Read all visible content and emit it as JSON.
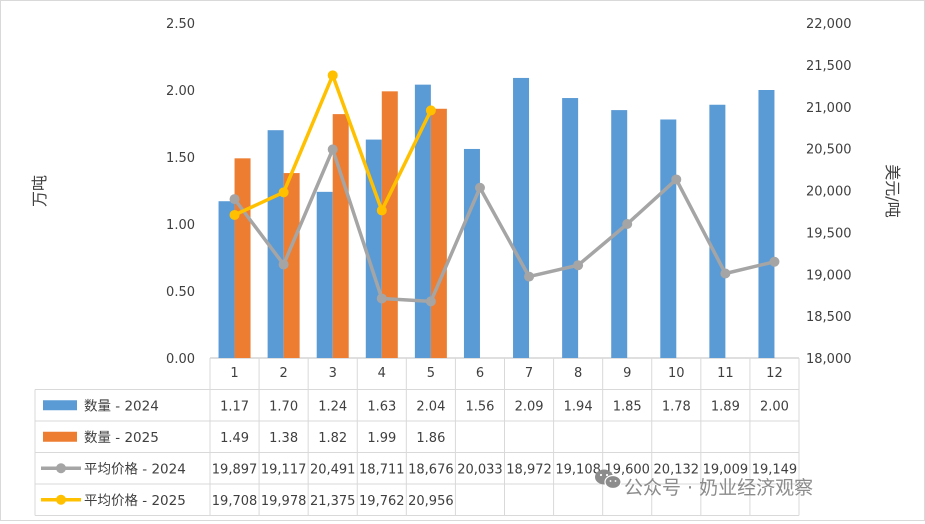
{
  "chart_data": {
    "type": "bar",
    "categories": [
      "1",
      "2",
      "3",
      "4",
      "5",
      "6",
      "7",
      "8",
      "9",
      "10",
      "11",
      "12"
    ],
    "ylabel_left": "万吨",
    "ylabel_right": "美元/吨",
    "ylim_left": [
      0,
      2.5
    ],
    "ylim_right": [
      18000,
      22000
    ],
    "yticks_left": [
      "0.00",
      "0.50",
      "1.00",
      "1.50",
      "2.00",
      "2.50"
    ],
    "yticks_right": [
      "18,000",
      "18,500",
      "19,000",
      "19,500",
      "20,000",
      "20,500",
      "21,000",
      "21,500",
      "22,000"
    ],
    "grid": false,
    "legend": "data-table",
    "series": [
      {
        "name": "数量 - 2024",
        "kind": "bar",
        "axis": "left",
        "color": "#5b9bd5",
        "values": [
          1.17,
          1.7,
          1.24,
          1.63,
          2.04,
          1.56,
          2.09,
          1.94,
          1.85,
          1.78,
          1.89,
          2.0
        ],
        "labels": [
          "1.17",
          "1.70",
          "1.24",
          "1.63",
          "2.04",
          "1.56",
          "2.09",
          "1.94",
          "1.85",
          "1.78",
          "1.89",
          "2.00"
        ]
      },
      {
        "name": "数量 - 2025",
        "kind": "bar",
        "axis": "left",
        "color": "#ed7d31",
        "values": [
          1.49,
          1.38,
          1.82,
          1.99,
          1.86,
          null,
          null,
          null,
          null,
          null,
          null,
          null
        ],
        "labels": [
          "1.49",
          "1.38",
          "1.82",
          "1.99",
          "1.86",
          "",
          "",
          "",
          "",
          "",
          "",
          ""
        ]
      },
      {
        "name": "平均价格 - 2024",
        "kind": "line",
        "axis": "right",
        "color": "#a5a5a5",
        "values": [
          19897,
          19117,
          20491,
          18711,
          18676,
          20033,
          18972,
          19108,
          19600,
          20132,
          19009,
          19149
        ],
        "labels": [
          "19,897",
          "19,117",
          "20,491",
          "18,711",
          "18,676",
          "20,033",
          "18,972",
          "19,108",
          "19,600",
          "20,132",
          "19,009",
          "19,149"
        ]
      },
      {
        "name": "平均价格 - 2025",
        "kind": "line",
        "axis": "right",
        "color": "#ffc000",
        "values": [
          19708,
          19978,
          21375,
          19762,
          20956,
          null,
          null,
          null,
          null,
          null,
          null,
          null
        ],
        "labels": [
          "19,708",
          "19,978",
          "21,375",
          "19,762",
          "20,956",
          "",
          "",
          "",
          "",
          "",
          "",
          ""
        ]
      }
    ]
  },
  "watermark": {
    "text": "公众号 · 奶业经济观察",
    "icon": "wechat-icon"
  }
}
